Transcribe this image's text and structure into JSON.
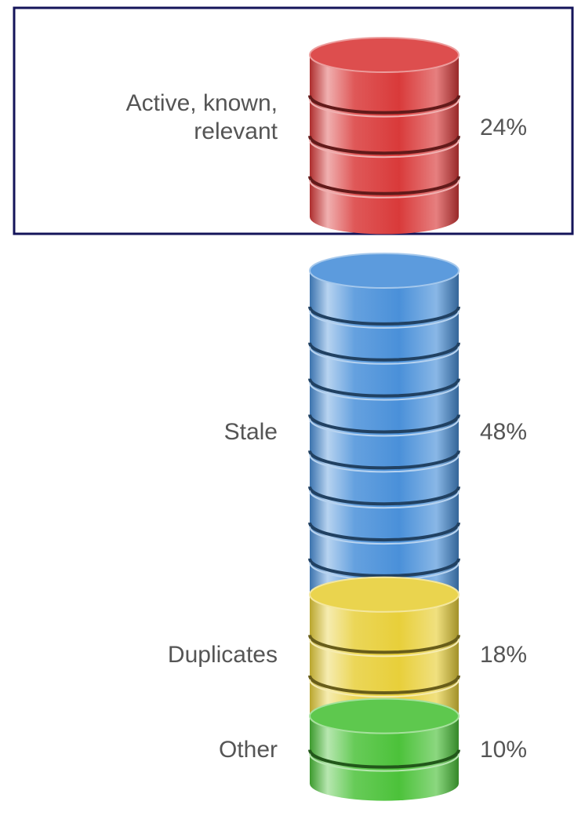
{
  "chart_data": {
    "type": "cylinder",
    "categories": [
      "Active, known, relevant",
      "Stale",
      "Duplicates",
      "Other"
    ],
    "values": [
      24,
      48,
      18,
      10
    ],
    "value_labels": [
      "24%",
      "48%",
      "18%",
      "10%"
    ],
    "colors": [
      "#d93a3a",
      "#4a90d9",
      "#e8cf3a",
      "#4cc23a"
    ]
  }
}
